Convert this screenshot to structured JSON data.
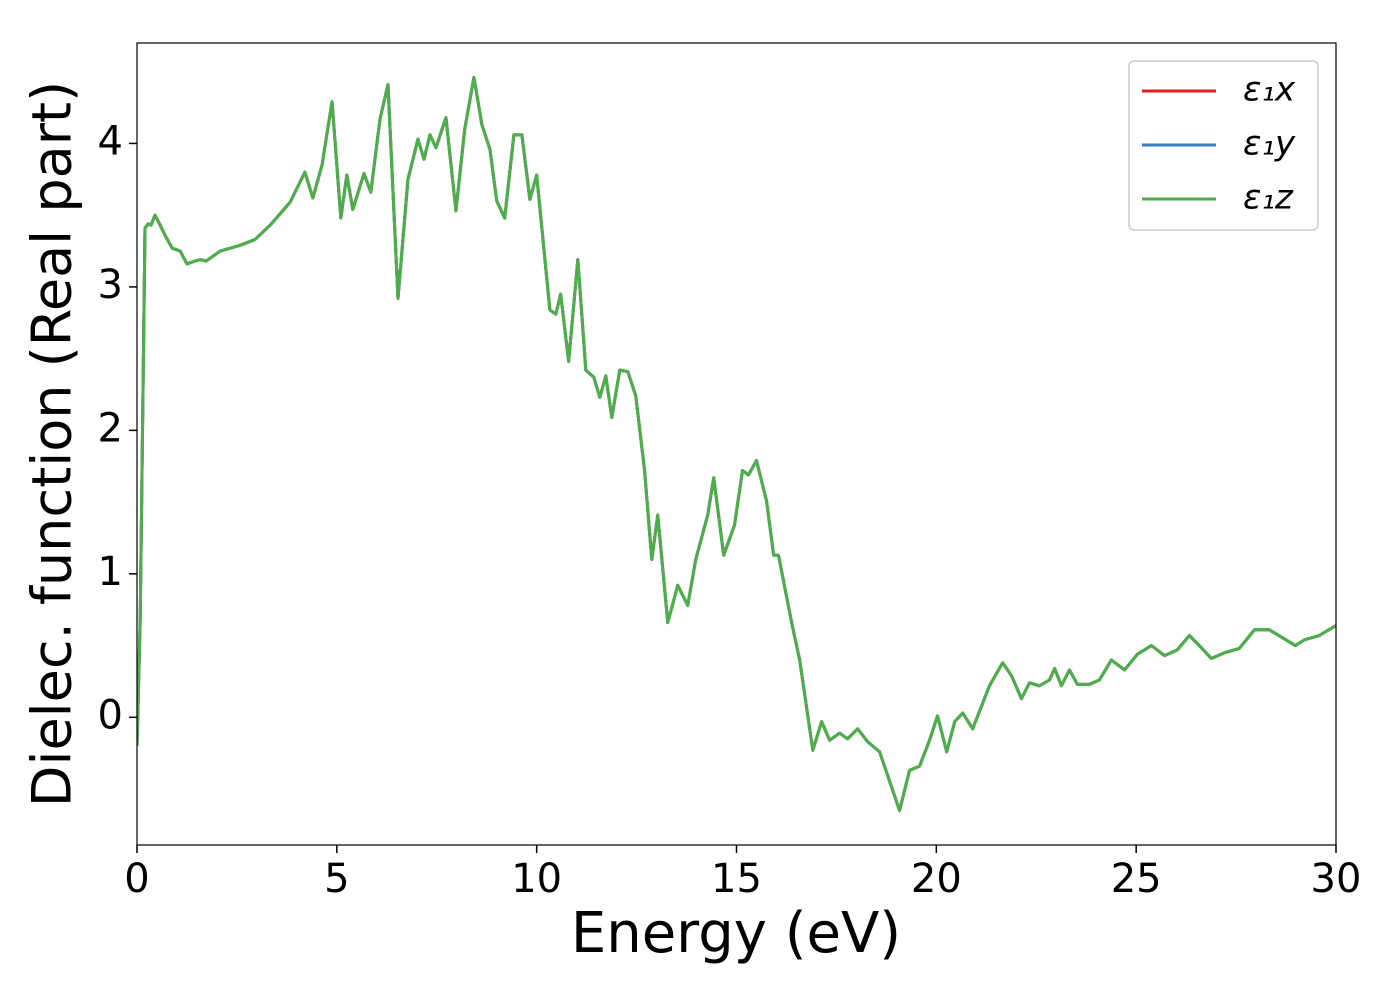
{
  "chart_data": {
    "type": "line",
    "xlabel": "Energy (eV)",
    "ylabel": "Dielec. function (Real part)",
    "xlim": [
      0,
      30
    ],
    "ylim": [
      -0.89,
      4.7
    ],
    "xticks": [
      0,
      5,
      10,
      15,
      20,
      25,
      30
    ],
    "yticks": [
      0,
      1,
      2,
      3,
      4
    ],
    "legend": "upper right",
    "x": [
      0,
      0.08,
      0.2,
      0.28,
      0.35,
      0.45,
      0.58,
      0.7,
      0.88,
      1.08,
      1.25,
      1.45,
      1.58,
      1.73,
      2.08,
      2.58,
      2.95,
      3.33,
      3.83,
      4.2,
      4.4,
      4.63,
      4.88,
      5.1,
      5.25,
      5.4,
      5.68,
      5.85,
      6.08,
      6.28,
      6.53,
      6.78,
      7.03,
      7.18,
      7.33,
      7.48,
      7.73,
      7.98,
      8.2,
      8.43,
      8.63,
      8.83,
      9.0,
      9.2,
      9.43,
      9.63,
      9.83,
      10.0,
      10.33,
      10.48,
      10.6,
      10.8,
      11.03,
      11.23,
      11.43,
      11.58,
      11.73,
      11.88,
      12.08,
      12.28,
      12.48,
      12.7,
      12.88,
      13.03,
      13.28,
      13.53,
      13.78,
      13.98,
      14.28,
      14.43,
      14.68,
      14.95,
      15.15,
      15.3,
      15.5,
      15.75,
      15.93,
      16.05,
      16.38,
      16.58,
      16.91,
      17.13,
      17.33,
      17.58,
      17.78,
      18.03,
      18.28,
      18.58,
      19.08,
      19.33,
      19.58,
      19.83,
      20.03,
      20.26,
      20.46,
      20.66,
      20.91,
      21.33,
      21.66,
      21.88,
      22.13,
      22.33,
      22.58,
      22.83,
      22.96,
      23.13,
      23.33,
      23.53,
      23.83,
      24.08,
      24.38,
      24.71,
      25.03,
      25.38,
      25.71,
      26.03,
      26.33,
      26.58,
      26.88,
      27.21,
      27.58,
      27.96,
      28.33,
      28.63,
      28.98,
      29.21,
      29.58,
      30.0
    ],
    "series": [
      {
        "name": "ε₁x",
        "color": "#e41a1c",
        "values": [
          -0.2,
          0.68,
          3.41,
          3.44,
          3.43,
          3.5,
          3.43,
          3.36,
          3.27,
          3.25,
          3.16,
          3.18,
          3.19,
          3.18,
          3.25,
          3.29,
          3.33,
          3.43,
          3.59,
          3.8,
          3.62,
          3.85,
          4.29,
          3.48,
          3.78,
          3.54,
          3.79,
          3.66,
          4.17,
          4.41,
          2.92,
          3.75,
          4.03,
          3.89,
          4.06,
          3.97,
          4.18,
          3.53,
          4.1,
          4.46,
          4.13,
          3.96,
          3.6,
          3.48,
          4.06,
          4.06,
          3.61,
          3.78,
          2.84,
          2.81,
          2.95,
          2.48,
          3.19,
          2.42,
          2.37,
          2.23,
          2.38,
          2.09,
          2.42,
          2.41,
          2.24,
          1.72,
          1.1,
          1.41,
          0.66,
          0.92,
          0.78,
          1.1,
          1.41,
          1.67,
          1.13,
          1.34,
          1.72,
          1.69,
          1.79,
          1.51,
          1.13,
          1.13,
          0.66,
          0.4,
          -0.23,
          -0.03,
          -0.16,
          -0.11,
          -0.15,
          -0.08,
          -0.17,
          -0.24,
          -0.65,
          -0.37,
          -0.34,
          -0.16,
          0.01,
          -0.24,
          -0.03,
          0.03,
          -0.08,
          0.22,
          0.38,
          0.29,
          0.13,
          0.24,
          0.22,
          0.26,
          0.34,
          0.22,
          0.33,
          0.23,
          0.23,
          0.26,
          0.4,
          0.33,
          0.44,
          0.5,
          0.43,
          0.47,
          0.57,
          0.5,
          0.41,
          0.45,
          0.48,
          0.61,
          0.61,
          0.56,
          0.5,
          0.54,
          0.57,
          0.64
        ]
      },
      {
        "name": "ε₁y",
        "color": "#377eb8",
        "values": [
          -0.2,
          0.68,
          3.41,
          3.44,
          3.43,
          3.5,
          3.43,
          3.36,
          3.27,
          3.25,
          3.16,
          3.18,
          3.19,
          3.18,
          3.25,
          3.29,
          3.33,
          3.43,
          3.59,
          3.8,
          3.62,
          3.85,
          4.29,
          3.48,
          3.78,
          3.54,
          3.79,
          3.66,
          4.17,
          4.41,
          2.92,
          3.75,
          4.03,
          3.89,
          4.06,
          3.97,
          4.18,
          3.53,
          4.1,
          4.46,
          4.13,
          3.96,
          3.6,
          3.48,
          4.06,
          4.06,
          3.61,
          3.78,
          2.84,
          2.81,
          2.95,
          2.48,
          3.19,
          2.42,
          2.37,
          2.23,
          2.38,
          2.09,
          2.42,
          2.41,
          2.24,
          1.72,
          1.1,
          1.41,
          0.66,
          0.92,
          0.78,
          1.1,
          1.41,
          1.67,
          1.13,
          1.34,
          1.72,
          1.69,
          1.79,
          1.51,
          1.13,
          1.13,
          0.66,
          0.4,
          -0.23,
          -0.03,
          -0.16,
          -0.11,
          -0.15,
          -0.08,
          -0.17,
          -0.24,
          -0.65,
          -0.37,
          -0.34,
          -0.16,
          0.01,
          -0.24,
          -0.03,
          0.03,
          -0.08,
          0.22,
          0.38,
          0.29,
          0.13,
          0.24,
          0.22,
          0.26,
          0.34,
          0.22,
          0.33,
          0.23,
          0.23,
          0.26,
          0.4,
          0.33,
          0.44,
          0.5,
          0.43,
          0.47,
          0.57,
          0.5,
          0.41,
          0.45,
          0.48,
          0.61,
          0.61,
          0.56,
          0.5,
          0.54,
          0.57,
          0.64
        ]
      },
      {
        "name": "ε₁z",
        "color": "#4daf4a",
        "values": [
          -0.2,
          0.68,
          3.41,
          3.44,
          3.43,
          3.5,
          3.43,
          3.36,
          3.27,
          3.25,
          3.16,
          3.18,
          3.19,
          3.18,
          3.25,
          3.29,
          3.33,
          3.43,
          3.59,
          3.8,
          3.62,
          3.85,
          4.29,
          3.48,
          3.78,
          3.54,
          3.79,
          3.66,
          4.17,
          4.41,
          2.92,
          3.75,
          4.03,
          3.89,
          4.06,
          3.97,
          4.18,
          3.53,
          4.1,
          4.46,
          4.13,
          3.96,
          3.6,
          3.48,
          4.06,
          4.06,
          3.61,
          3.78,
          2.84,
          2.81,
          2.95,
          2.48,
          3.19,
          2.42,
          2.37,
          2.23,
          2.38,
          2.09,
          2.42,
          2.41,
          2.24,
          1.72,
          1.1,
          1.41,
          0.66,
          0.92,
          0.78,
          1.1,
          1.41,
          1.67,
          1.13,
          1.34,
          1.72,
          1.69,
          1.79,
          1.51,
          1.13,
          1.13,
          0.66,
          0.4,
          -0.23,
          -0.03,
          -0.16,
          -0.11,
          -0.15,
          -0.08,
          -0.17,
          -0.24,
          -0.65,
          -0.37,
          -0.34,
          -0.16,
          0.01,
          -0.24,
          -0.03,
          0.03,
          -0.08,
          0.22,
          0.38,
          0.29,
          0.13,
          0.24,
          0.22,
          0.26,
          0.34,
          0.22,
          0.33,
          0.23,
          0.23,
          0.26,
          0.4,
          0.33,
          0.44,
          0.5,
          0.43,
          0.47,
          0.57,
          0.5,
          0.41,
          0.45,
          0.48,
          0.61,
          0.61,
          0.56,
          0.5,
          0.54,
          0.57,
          0.64
        ]
      }
    ]
  }
}
